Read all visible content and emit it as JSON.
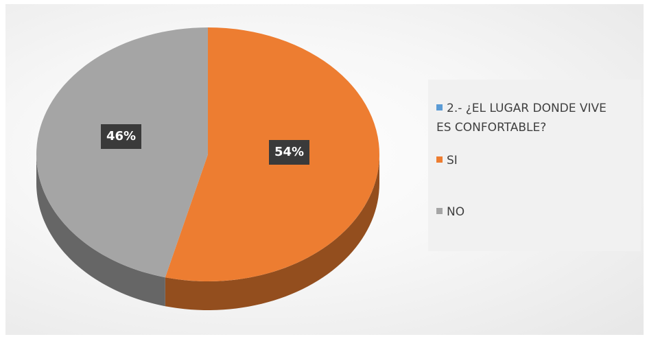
{
  "chart_data": {
    "type": "pie",
    "style": "3d",
    "categories": [
      "2.- ¿EL LUGAR DONDE VIVE ES CONFORTABLE?",
      "SI",
      "NO"
    ],
    "values": [
      0,
      54,
      46
    ],
    "data_labels": [
      "",
      "54%",
      "46%"
    ],
    "colors": [
      "#5b9bd5",
      "#ed7d31",
      "#a5a5a5"
    ],
    "legend": {
      "placement": "right",
      "entries": [
        {
          "lines": [
            "2.- ¿EL LUGAR DONDE VIVE",
            "ES CONFORTABLE?"
          ],
          "color": "#5b9bd5"
        },
        {
          "lines": [
            "SI"
          ],
          "color": "#ed7d31"
        },
        {
          "lines": [
            "NO"
          ],
          "color": "#a5a5a5"
        }
      ]
    }
  }
}
